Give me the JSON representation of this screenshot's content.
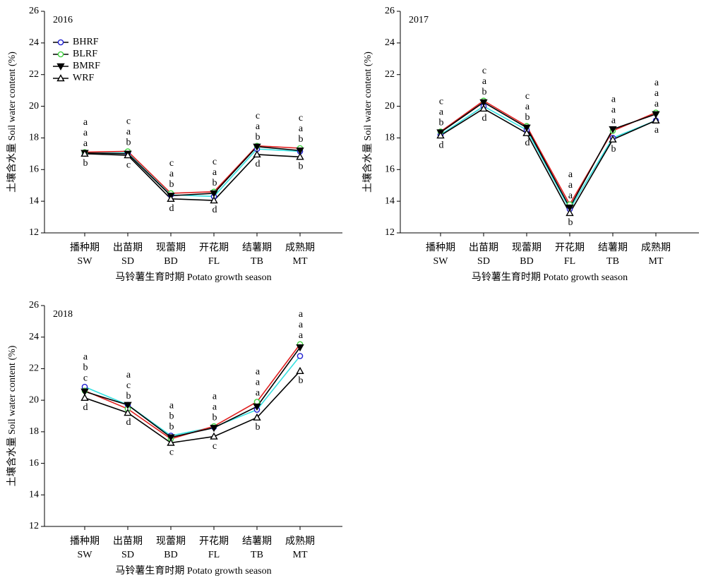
{
  "chart_data": [
    {
      "type": "line",
      "title": "2016",
      "ylabel": "土壤含水量 Soil water content (%)",
      "xlabel": "马铃薯生育时期 Potato growth season",
      "categories": [
        [
          "播种期",
          "SW"
        ],
        [
          "出苗期",
          "SD"
        ],
        [
          "现蕾期",
          "BD"
        ],
        [
          "开花期",
          "FL"
        ],
        [
          "结薯期",
          "TB"
        ],
        [
          "成熟期",
          "MT"
        ]
      ],
      "ylim": [
        12,
        26
      ],
      "yticks": [
        12,
        14,
        16,
        18,
        20,
        22,
        24,
        26
      ],
      "legend": "upper left",
      "series": [
        {
          "name": "BHRF",
          "color": "#1f1fd0",
          "line_color": "#35e0e0",
          "marker": "circle",
          "filled": false,
          "values": [
            17.05,
            17.05,
            14.4,
            14.3,
            17.3,
            17.15
          ],
          "labels": [
            "a",
            "c",
            "c",
            "c",
            "c",
            "c"
          ]
        },
        {
          "name": "BLRF",
          "color": "#3fd23f",
          "line_color": "#e02020",
          "marker": "circle",
          "filled": false,
          "values": [
            17.1,
            17.15,
            14.5,
            14.6,
            17.5,
            17.35
          ],
          "labels": [
            "a",
            "a",
            "a",
            "a",
            "a",
            "a"
          ]
        },
        {
          "name": "BMRF",
          "color": "#000000",
          "line_color": "#000000",
          "marker": "triangle-down",
          "filled": true,
          "values": [
            17.05,
            17.0,
            14.35,
            14.5,
            17.45,
            17.2
          ],
          "labels": [
            "a",
            "b",
            "b",
            "b",
            "b",
            "b"
          ]
        },
        {
          "name": "WRF",
          "color": "#000000",
          "line_color": "#000000",
          "marker": "triangle-up",
          "filled": false,
          "values": [
            17.0,
            16.9,
            14.15,
            14.05,
            16.95,
            16.8
          ],
          "labels": [
            "b",
            "c",
            "d",
            "d",
            "d",
            "b"
          ]
        }
      ]
    },
    {
      "type": "line",
      "title": "2017",
      "ylabel": "土壤含水量 Soil water content (%)",
      "xlabel": "马铃薯生育时期 Potato growth season",
      "categories": [
        [
          "播种期",
          "SW"
        ],
        [
          "出苗期",
          "SD"
        ],
        [
          "现蕾期",
          "BD"
        ],
        [
          "开花期",
          "FL"
        ],
        [
          "结薯期",
          "TB"
        ],
        [
          "成熟期",
          "MT"
        ]
      ],
      "ylim": [
        12,
        26
      ],
      "yticks": [
        12,
        14,
        16,
        18,
        20,
        22,
        24,
        26
      ],
      "series": [
        {
          "color": "#1f1fd0",
          "line_color": "#35e0e0",
          "marker": "circle",
          "filled": false,
          "values": [
            18.2,
            20.0,
            18.5,
            13.5,
            18.0,
            19.1
          ],
          "labels": [
            "c",
            "c",
            "c",
            "a",
            "a",
            "a"
          ]
        },
        {
          "color": "#3fd23f",
          "line_color": "#e02020",
          "marker": "circle",
          "filled": false,
          "values": [
            18.4,
            20.35,
            18.75,
            13.8,
            18.45,
            19.6
          ],
          "labels": [
            "a",
            "a",
            "a",
            "a",
            "a",
            "a"
          ]
        },
        {
          "color": "#000000",
          "line_color": "#000000",
          "marker": "triangle-down",
          "filled": true,
          "values": [
            18.35,
            20.25,
            18.65,
            13.6,
            18.55,
            19.5
          ],
          "labels": [
            "b",
            "b",
            "b",
            "a",
            "a",
            "a"
          ]
        },
        {
          "color": "#000000",
          "line_color": "#000000",
          "marker": "triangle-up",
          "filled": false,
          "values": [
            18.15,
            19.85,
            18.3,
            13.25,
            17.9,
            19.1
          ],
          "labels": [
            "d",
            "d",
            "d",
            "b",
            "b",
            "a"
          ]
        }
      ]
    },
    {
      "type": "line",
      "title": "2018",
      "ylabel": "土壤含水量 Soil water content (%)",
      "xlabel": "马铃薯生育时期 Potato growth season",
      "categories": [
        [
          "播种期",
          "SW"
        ],
        [
          "出苗期",
          "SD"
        ],
        [
          "现蕾期",
          "BD"
        ],
        [
          "开花期",
          "FL"
        ],
        [
          "结薯期",
          "TB"
        ],
        [
          "成熟期",
          "MT"
        ]
      ],
      "ylim": [
        12,
        26
      ],
      "yticks": [
        12,
        14,
        16,
        18,
        20,
        22,
        24,
        26
      ],
      "series": [
        {
          "color": "#1f1fd0",
          "line_color": "#35e0e0",
          "marker": "circle",
          "filled": false,
          "values": [
            20.85,
            19.7,
            17.75,
            18.3,
            19.4,
            22.8
          ],
          "labels": [
            "a",
            "a",
            "a",
            "a",
            "a",
            "a"
          ]
        },
        {
          "color": "#3fd23f",
          "line_color": "#e02020",
          "marker": "circle",
          "filled": false,
          "values": [
            20.6,
            19.45,
            17.55,
            18.35,
            19.9,
            23.55
          ],
          "labels": [
            "b",
            "c",
            "b",
            "a",
            "a",
            "a"
          ]
        },
        {
          "color": "#000000",
          "line_color": "#000000",
          "marker": "triangle-down",
          "filled": true,
          "values": [
            20.55,
            19.7,
            17.65,
            18.25,
            19.6,
            23.35
          ],
          "labels": [
            "c",
            "b",
            "b",
            "b",
            "a",
            "a"
          ]
        },
        {
          "color": "#000000",
          "line_color": "#000000",
          "marker": "triangle-up",
          "filled": false,
          "values": [
            20.15,
            19.2,
            17.3,
            17.7,
            18.9,
            21.85
          ],
          "labels": [
            "d",
            "d",
            "c",
            "c",
            "b",
            "b"
          ]
        }
      ]
    }
  ]
}
